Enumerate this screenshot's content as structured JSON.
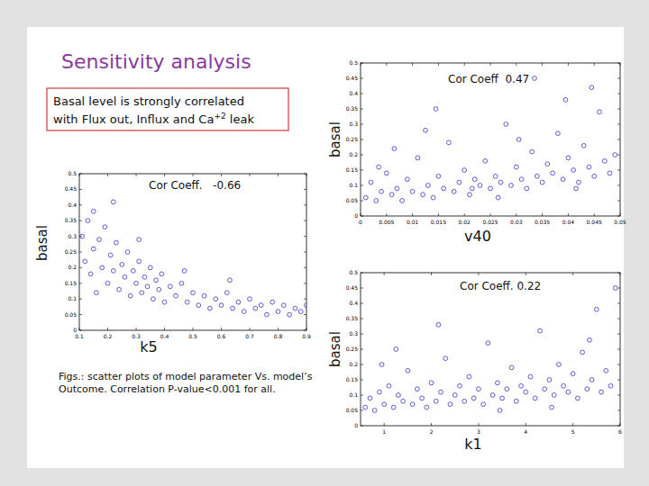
{
  "slide": {
    "title": "Sensitivity analysis",
    "box": {
      "line1": "Basal level is strongly correlated",
      "line2": "with Flux out, Influx and Ca",
      "line2_sup": "+2",
      "line2_end": " leak"
    },
    "caption": [
      "Figs.: scatter plots of model parameter Vs. model’s",
      "Outcome. Correlation P-value<0.001 for all."
    ]
  },
  "chart_data": [
    {
      "type": "scatter",
      "annotation": "Cor Coeff  0.47",
      "x_label": "v40",
      "y_label": "basal",
      "color": "#3535c8",
      "marker": "circle",
      "grid": false,
      "xlim": [
        0,
        0.05
      ],
      "xticks": [
        0,
        0.005,
        0.01,
        0.015,
        0.02,
        0.025,
        0.03,
        0.035,
        0.04,
        0.045,
        0.05
      ],
      "ylim": [
        0,
        0.5
      ],
      "yticks": [
        0,
        0.05,
        0.1,
        0.15,
        0.2,
        0.25,
        0.3,
        0.35,
        0.4,
        0.45,
        0.5
      ],
      "x": [
        0.001,
        0.002,
        0.003,
        0.004,
        0.005,
        0.006,
        0.007,
        0.008,
        0.009,
        0.01,
        0.011,
        0.012,
        0.013,
        0.014,
        0.015,
        0.016,
        0.017,
        0.018,
        0.019,
        0.02,
        0.021,
        0.022,
        0.023,
        0.024,
        0.025,
        0.026,
        0.027,
        0.028,
        0.029,
        0.03,
        0.031,
        0.032,
        0.033,
        0.034,
        0.035,
        0.036,
        0.037,
        0.038,
        0.039,
        0.04,
        0.041,
        0.042,
        0.043,
        0.044,
        0.045,
        0.046,
        0.047,
        0.048,
        0.049,
        0.0035,
        0.0125,
        0.0215,
        0.0305,
        0.0395,
        0.0445,
        0.0145,
        0.0265,
        0.0415,
        0.0065,
        0.0335
      ],
      "values": [
        0.06,
        0.11,
        0.05,
        0.08,
        0.14,
        0.07,
        0.09,
        0.05,
        0.12,
        0.08,
        0.19,
        0.07,
        0.1,
        0.06,
        0.13,
        0.09,
        0.24,
        0.08,
        0.11,
        0.15,
        0.07,
        0.12,
        0.1,
        0.18,
        0.09,
        0.13,
        0.11,
        0.3,
        0.1,
        0.16,
        0.12,
        0.09,
        0.21,
        0.13,
        0.11,
        0.17,
        0.14,
        0.27,
        0.12,
        0.19,
        0.15,
        0.11,
        0.23,
        0.16,
        0.13,
        0.34,
        0.18,
        0.14,
        0.2,
        0.16,
        0.28,
        0.09,
        0.25,
        0.38,
        0.42,
        0.35,
        0.06,
        0.09,
        0.22,
        0.45
      ]
    },
    {
      "type": "scatter",
      "annotation": "Cor Coeff.   -0.66",
      "x_label": "k5",
      "y_label": "basal",
      "color": "#3535c8",
      "marker": "circle",
      "grid": false,
      "xlim": [
        0.1,
        0.9
      ],
      "xticks": [
        0.1,
        0.2,
        0.3,
        0.4,
        0.5,
        0.6,
        0.7,
        0.8,
        0.9
      ],
      "ylim": [
        0,
        0.5
      ],
      "yticks": [
        0,
        0.05,
        0.1,
        0.15,
        0.2,
        0.25,
        0.3,
        0.35,
        0.4,
        0.45,
        0.5
      ],
      "x": [
        0.11,
        0.12,
        0.13,
        0.14,
        0.15,
        0.16,
        0.17,
        0.18,
        0.19,
        0.2,
        0.21,
        0.22,
        0.23,
        0.24,
        0.25,
        0.26,
        0.27,
        0.28,
        0.29,
        0.3,
        0.31,
        0.32,
        0.33,
        0.34,
        0.35,
        0.36,
        0.37,
        0.38,
        0.39,
        0.4,
        0.42,
        0.44,
        0.46,
        0.48,
        0.5,
        0.52,
        0.54,
        0.56,
        0.58,
        0.6,
        0.62,
        0.64,
        0.66,
        0.68,
        0.7,
        0.72,
        0.74,
        0.76,
        0.78,
        0.8,
        0.82,
        0.84,
        0.86,
        0.88,
        0.9,
        0.15,
        0.31,
        0.47,
        0.63,
        0.22
      ],
      "values": [
        0.3,
        0.22,
        0.35,
        0.18,
        0.26,
        0.12,
        0.29,
        0.2,
        0.33,
        0.15,
        0.24,
        0.19,
        0.28,
        0.13,
        0.21,
        0.17,
        0.25,
        0.11,
        0.19,
        0.15,
        0.22,
        0.12,
        0.17,
        0.14,
        0.2,
        0.1,
        0.16,
        0.13,
        0.18,
        0.09,
        0.14,
        0.11,
        0.15,
        0.09,
        0.12,
        0.08,
        0.11,
        0.07,
        0.1,
        0.08,
        0.12,
        0.07,
        0.09,
        0.06,
        0.1,
        0.07,
        0.08,
        0.05,
        0.09,
        0.06,
        0.08,
        0.05,
        0.07,
        0.06,
        0.08,
        0.38,
        0.29,
        0.19,
        0.16,
        0.41
      ]
    },
    {
      "type": "scatter",
      "annotation": "Cor Coeff. 0.22",
      "x_label": "k1",
      "y_label": "basal",
      "color": "#3535c8",
      "marker": "circle",
      "grid": false,
      "xlim": [
        0.5,
        6
      ],
      "xticks": [
        1,
        2,
        3,
        4,
        5,
        6
      ],
      "ylim": [
        0,
        0.5
      ],
      "yticks": [
        0,
        0.05,
        0.1,
        0.15,
        0.2,
        0.25,
        0.3,
        0.35,
        0.4,
        0.45,
        0.5
      ],
      "x": [
        0.6,
        0.7,
        0.8,
        0.9,
        1.0,
        1.1,
        1.2,
        1.3,
        1.4,
        1.5,
        1.6,
        1.7,
        1.8,
        1.9,
        2.0,
        2.1,
        2.2,
        2.3,
        2.4,
        2.5,
        2.6,
        2.7,
        2.8,
        2.9,
        3.0,
        3.1,
        3.2,
        3.3,
        3.4,
        3.5,
        3.6,
        3.7,
        3.8,
        3.9,
        4.0,
        4.1,
        4.2,
        4.3,
        4.4,
        4.5,
        4.6,
        4.7,
        4.8,
        4.9,
        5.0,
        5.1,
        5.2,
        5.3,
        5.4,
        5.5,
        5.6,
        5.7,
        5.8,
        5.9,
        1.25,
        2.15,
        3.45,
        4.55,
        5.35,
        0.95
      ],
      "values": [
        0.06,
        0.09,
        0.05,
        0.11,
        0.07,
        0.13,
        0.06,
        0.1,
        0.08,
        0.18,
        0.07,
        0.12,
        0.09,
        0.06,
        0.14,
        0.08,
        0.11,
        0.22,
        0.07,
        0.1,
        0.13,
        0.08,
        0.16,
        0.09,
        0.12,
        0.07,
        0.27,
        0.1,
        0.14,
        0.09,
        0.12,
        0.19,
        0.08,
        0.13,
        0.11,
        0.16,
        0.09,
        0.31,
        0.12,
        0.15,
        0.1,
        0.2,
        0.13,
        0.11,
        0.17,
        0.09,
        0.24,
        0.12,
        0.15,
        0.38,
        0.11,
        0.18,
        0.13,
        0.45,
        0.25,
        0.33,
        0.05,
        0.06,
        0.28,
        0.2
      ]
    }
  ]
}
